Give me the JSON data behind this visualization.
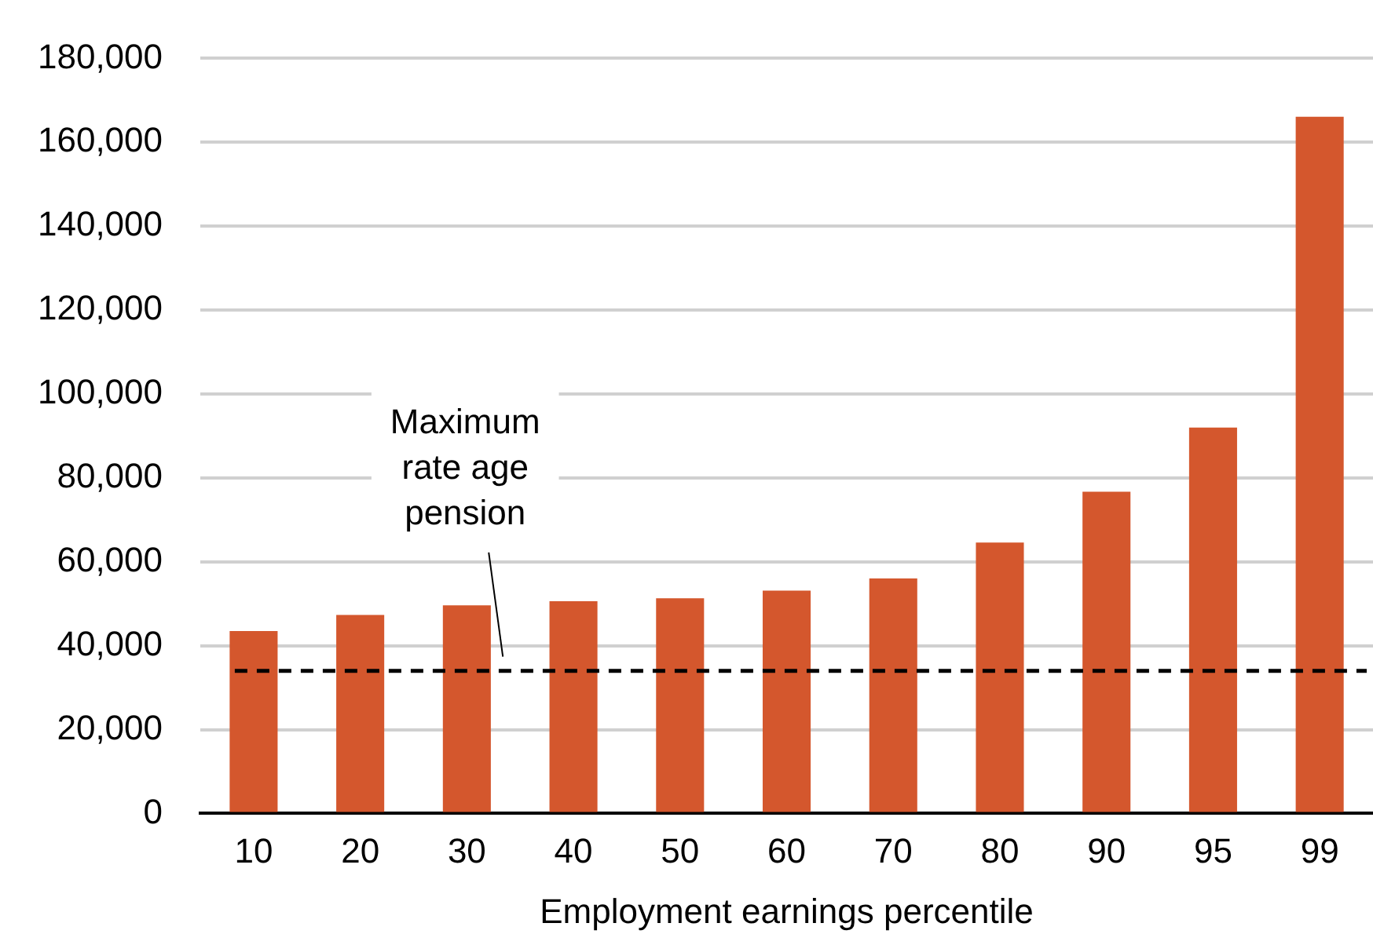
{
  "chart_data": {
    "type": "bar",
    "xlabel": "Employment earnings percentile",
    "categories": [
      "10",
      "20",
      "30",
      "40",
      "50",
      "60",
      "70",
      "80",
      "90",
      "95",
      "99"
    ],
    "values": [
      43500,
      47300,
      49600,
      50600,
      51300,
      53100,
      56000,
      64600,
      76700,
      92000,
      166100
    ],
    "color": "#d4572d",
    "ylim": [
      0,
      180000
    ],
    "yticks": [
      0,
      {
        "value": 20000,
        "label": "20,000"
      },
      {
        "value": 40000,
        "label": "40,000"
      },
      {
        "value": 60000,
        "label": "60,000"
      },
      {
        "value": 80000,
        "label": "80,000"
      },
      {
        "value": 100000,
        "label": "100,000"
      },
      {
        "value": 120000,
        "label": "120,000"
      },
      {
        "value": 140000,
        "label": "140,000"
      },
      {
        "value": 160000,
        "label": "160,000"
      },
      {
        "value": 180000,
        "label": "180,000"
      }
    ],
    "grid": "y",
    "legend": false,
    "ref_lines": [
      {
        "axis": "y",
        "value": 34000,
        "label": "Maximum rate age pension",
        "color": "#000000",
        "line_style": "dashed"
      }
    ]
  }
}
